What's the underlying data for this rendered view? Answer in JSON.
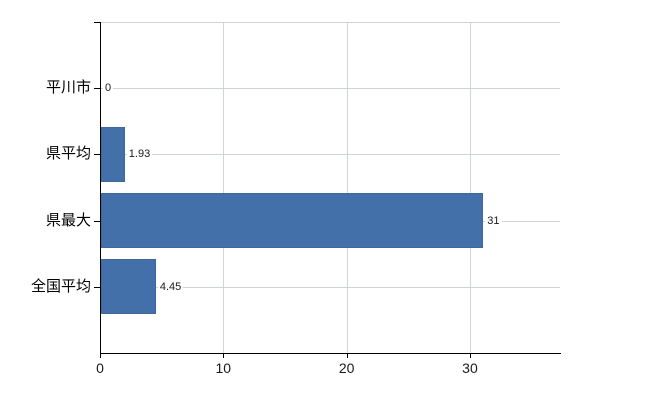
{
  "chart_data": {
    "type": "bar",
    "orientation": "horizontal",
    "title": "",
    "xlabel": "",
    "ylabel": "",
    "categories": [
      "平川市",
      "県平均",
      "県最大",
      "全国平均"
    ],
    "values": [
      0,
      1.93,
      31,
      4.45
    ],
    "value_labels": [
      "0",
      "1.93",
      "31",
      "4.45"
    ],
    "xticks": [
      0,
      10,
      20,
      30
    ],
    "xtick_labels": [
      "0",
      "10",
      "20",
      "30"
    ],
    "xlim": [
      0,
      37.3
    ],
    "grid": true,
    "legend": false,
    "colors": {
      "bar": "#4470aa",
      "grid": "#cfd5cf",
      "axis": "#000000",
      "value_label": "#1a1a1a",
      "category_label": "#000000",
      "background": "#ffffff"
    }
  }
}
